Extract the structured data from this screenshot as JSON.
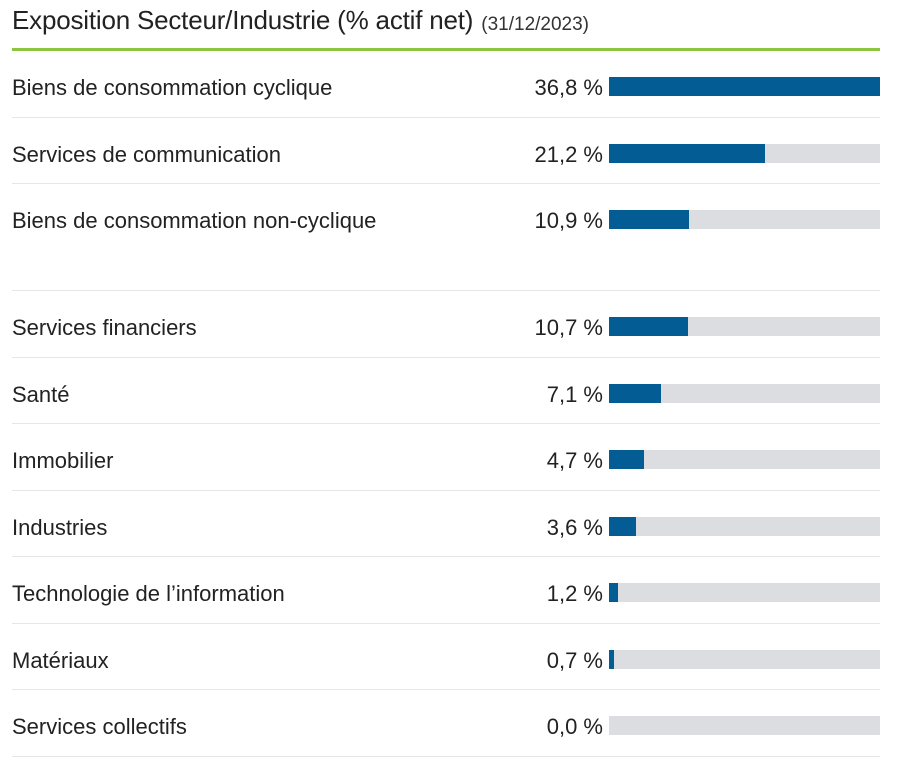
{
  "header": {
    "title": "Exposition Secteur/Industrie (% actif net)",
    "date": "(31/12/2023)"
  },
  "colors": {
    "accent_line": "#8cc63f",
    "bar_fill": "#035c94",
    "bar_track": "#dcdde1"
  },
  "chart_data": {
    "type": "bar",
    "orientation": "horizontal",
    "title": "Exposition Secteur/Industrie (% actif net)",
    "subtitle": "(31/12/2023)",
    "xlim": [
      0,
      36.8
    ],
    "grid": false,
    "categories": [
      "Biens de consommation cyclique",
      "Services de communication",
      "Biens de consommation non-cyclique",
      "Services financiers",
      "Santé",
      "Immobilier",
      "Industries",
      "Technologie de l’information",
      "Matériaux",
      "Services collectifs"
    ],
    "values": [
      36.8,
      21.2,
      10.9,
      10.7,
      7.1,
      4.7,
      3.6,
      1.2,
      0.7,
      0.0
    ],
    "value_labels": [
      "36,8 %",
      "21,2 %",
      "10,9 %",
      "10,7 %",
      "7,1 %",
      "4,7 %",
      "3,6 %",
      "1,2 %",
      "0,7 %",
      "0,0 %"
    ]
  }
}
